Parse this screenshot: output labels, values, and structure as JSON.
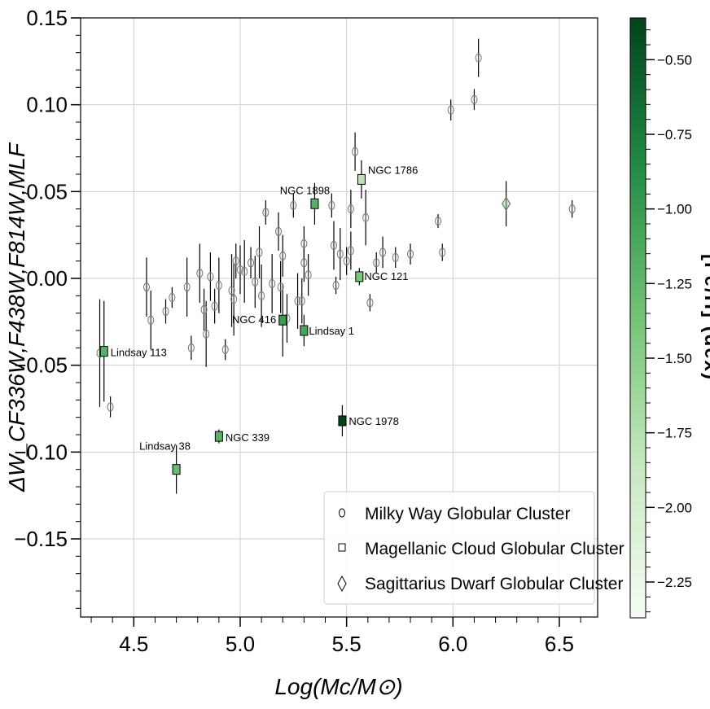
{
  "chart_data": {
    "type": "scatter",
    "xlabel": "Log(Mc/M⊙)",
    "ylabel": "ΔW_CF336W,F438W,F814W,MLF",
    "xlim": [
      4.25,
      6.68
    ],
    "ylim": [
      -0.195,
      0.15
    ],
    "x_ticks": [
      "4.5",
      "5.0",
      "5.5",
      "6.0",
      "6.5"
    ],
    "y_ticks": [
      "0.15",
      "0.10",
      "0.05",
      "0.00",
      "−0.05",
      "−0.10",
      "−0.15"
    ],
    "grid": true,
    "legend_position": "lower-right",
    "colorbar": {
      "label": "[Fe/H] (dex)",
      "range": [
        -2.37,
        -0.36
      ],
      "ticks": [
        "−0.50",
        "−0.75",
        "−1.00",
        "−1.25",
        "−1.50",
        "−1.75",
        "−2.00",
        "−2.25"
      ],
      "colors": {
        "light": "#f7fcf5",
        "mid": "#74c476",
        "dark": "#00441b"
      }
    },
    "series": [
      {
        "name": "Milky Way Globular Cluster",
        "marker": "circle",
        "points": [
          {
            "x": 4.34,
            "y": -0.043,
            "err": 0.031,
            "feh": -1.6
          },
          {
            "x": 4.39,
            "y": -0.074,
            "err": 0.006,
            "feh": -2.0
          },
          {
            "x": 4.56,
            "y": -0.005,
            "err": 0.017,
            "feh": -1.7
          },
          {
            "x": 4.58,
            "y": -0.024,
            "err": 0.017,
            "feh": -2.0
          },
          {
            "x": 4.65,
            "y": -0.019,
            "err": 0.007,
            "feh": -1.9
          },
          {
            "x": 4.68,
            "y": -0.011,
            "err": 0.006,
            "feh": -2.1
          },
          {
            "x": 4.75,
            "y": -0.005,
            "err": 0.017,
            "feh": -2.2
          },
          {
            "x": 4.77,
            "y": -0.04,
            "err": 0.007,
            "feh": -2.1
          },
          {
            "x": 4.81,
            "y": 0.003,
            "err": 0.017,
            "feh": -1.6
          },
          {
            "x": 4.83,
            "y": -0.018,
            "err": 0.012,
            "feh": -2.1
          },
          {
            "x": 4.84,
            "y": -0.032,
            "err": 0.019,
            "feh": -2.0
          },
          {
            "x": 4.86,
            "y": 0.001,
            "err": 0.014,
            "feh": -2.2
          },
          {
            "x": 4.88,
            "y": -0.016,
            "err": 0.01,
            "feh": -2.1
          },
          {
            "x": 4.9,
            "y": -0.004,
            "err": 0.016,
            "feh": -2.2
          },
          {
            "x": 4.93,
            "y": -0.041,
            "err": 0.006,
            "feh": -2.0
          },
          {
            "x": 4.96,
            "y": -0.007,
            "err": 0.021,
            "feh": -1.9
          },
          {
            "x": 4.97,
            "y": -0.012,
            "err": 0.021,
            "feh": -2.2
          },
          {
            "x": 4.98,
            "y": 0.01,
            "err": 0.01,
            "feh": -1.7
          },
          {
            "x": 5.0,
            "y": 0.005,
            "err": 0.014,
            "feh": -2.1
          },
          {
            "x": 5.02,
            "y": 0.004,
            "err": 0.018,
            "feh": -2.0
          },
          {
            "x": 5.05,
            "y": 0.009,
            "err": 0.009,
            "feh": -1.8
          },
          {
            "x": 5.07,
            "y": -0.002,
            "err": 0.015,
            "feh": -2.2
          },
          {
            "x": 5.09,
            "y": 0.015,
            "err": 0.015,
            "feh": -1.9
          },
          {
            "x": 5.1,
            "y": -0.01,
            "err": 0.018,
            "feh": -2.1
          },
          {
            "x": 5.12,
            "y": 0.038,
            "err": 0.007,
            "feh": -1.6
          },
          {
            "x": 5.15,
            "y": -0.003,
            "err": 0.017,
            "feh": -2.1
          },
          {
            "x": 5.18,
            "y": 0.027,
            "err": 0.011,
            "feh": -1.7
          },
          {
            "x": 5.19,
            "y": -0.005,
            "err": 0.015,
            "feh": -2.2
          },
          {
            "x": 5.2,
            "y": 0.013,
            "err": 0.012,
            "feh": -1.9
          },
          {
            "x": 5.22,
            "y": -0.023,
            "err": 0.014,
            "feh": -2.0
          },
          {
            "x": 5.25,
            "y": 0.042,
            "err": 0.007,
            "feh": -1.6
          },
          {
            "x": 5.27,
            "y": -0.013,
            "err": 0.016,
            "feh": -2.1
          },
          {
            "x": 5.29,
            "y": -0.013,
            "err": 0.013,
            "feh": -2.0
          },
          {
            "x": 5.3,
            "y": 0.02,
            "err": 0.01,
            "feh": -2.1
          },
          {
            "x": 5.3,
            "y": 0.009,
            "err": 0.011,
            "feh": -1.9
          },
          {
            "x": 5.32,
            "y": 0.002,
            "err": 0.012,
            "feh": -2.2
          },
          {
            "x": 5.43,
            "y": 0.042,
            "err": 0.007,
            "feh": -1.8
          },
          {
            "x": 5.44,
            "y": 0.019,
            "err": 0.014,
            "feh": -1.7
          },
          {
            "x": 5.45,
            "y": -0.004,
            "err": 0.005,
            "feh": -2.0
          },
          {
            "x": 5.47,
            "y": 0.014,
            "err": 0.015,
            "feh": -2.1
          },
          {
            "x": 5.5,
            "y": 0.01,
            "err": 0.008,
            "feh": -2.2
          },
          {
            "x": 5.52,
            "y": 0.04,
            "err": 0.011,
            "feh": -2.0
          },
          {
            "x": 5.52,
            "y": 0.016,
            "err": 0.011,
            "feh": -1.9
          },
          {
            "x": 5.54,
            "y": 0.073,
            "err": 0.011,
            "feh": -2.0
          },
          {
            "x": 5.59,
            "y": 0.035,
            "err": 0.016,
            "feh": -2.1
          },
          {
            "x": 5.61,
            "y": -0.014,
            "err": 0.005,
            "feh": -1.9
          },
          {
            "x": 5.64,
            "y": 0.009,
            "err": 0.006,
            "feh": -1.8
          },
          {
            "x": 5.67,
            "y": 0.015,
            "err": 0.009,
            "feh": -2.1
          },
          {
            "x": 5.73,
            "y": 0.012,
            "err": 0.006,
            "feh": -2.0
          },
          {
            "x": 5.8,
            "y": 0.014,
            "err": 0.006,
            "feh": -1.8
          },
          {
            "x": 5.93,
            "y": 0.033,
            "err": 0.004,
            "feh": -1.9
          },
          {
            "x": 5.95,
            "y": 0.015,
            "err": 0.005,
            "feh": -2.0
          },
          {
            "x": 5.99,
            "y": 0.097,
            "err": 0.006,
            "feh": -2.1
          },
          {
            "x": 6.1,
            "y": 0.103,
            "err": 0.006,
            "feh": -1.9
          },
          {
            "x": 6.12,
            "y": 0.127,
            "err": 0.011,
            "feh": -2.0
          },
          {
            "x": 6.56,
            "y": 0.04,
            "err": 0.005,
            "feh": -2.0
          }
        ]
      },
      {
        "name": "Magellanic Cloud Globular Cluster",
        "marker": "square",
        "points": [
          {
            "x": 4.36,
            "y": -0.042,
            "err": 0.029,
            "feh": -1.2,
            "label": "Lindsay 113"
          },
          {
            "x": 4.7,
            "y": -0.11,
            "err": 0.014,
            "feh": -1.3,
            "label": "Lindsay 38"
          },
          {
            "x": 4.9,
            "y": -0.091,
            "err": 0.004,
            "feh": -1.2,
            "label": "NGC 339"
          },
          {
            "x": 5.2,
            "y": -0.024,
            "err": 0.021,
            "feh": -1.0,
            "label": "NGC 416"
          },
          {
            "x": 5.3,
            "y": -0.03,
            "err": 0.009,
            "feh": -1.1,
            "label": "Lindsay 1"
          },
          {
            "x": 5.35,
            "y": 0.043,
            "err": 0.012,
            "feh": -1.2,
            "label": "NGC 1898"
          },
          {
            "x": 5.48,
            "y": -0.082,
            "err": 0.009,
            "feh": -0.36,
            "label": "NGC 1978"
          },
          {
            "x": 5.56,
            "y": 0.001,
            "err": 0.005,
            "feh": -1.4,
            "label": "NGC 121"
          },
          {
            "x": 5.57,
            "y": 0.057,
            "err": 0.011,
            "feh": -1.8,
            "label": "NGC 1786"
          }
        ]
      },
      {
        "name": "Sagittarius Dwarf Globular Cluster",
        "marker": "diamond",
        "points": [
          {
            "x": 6.25,
            "y": 0.043,
            "err": 0.013,
            "feh": -1.5
          }
        ]
      }
    ]
  }
}
